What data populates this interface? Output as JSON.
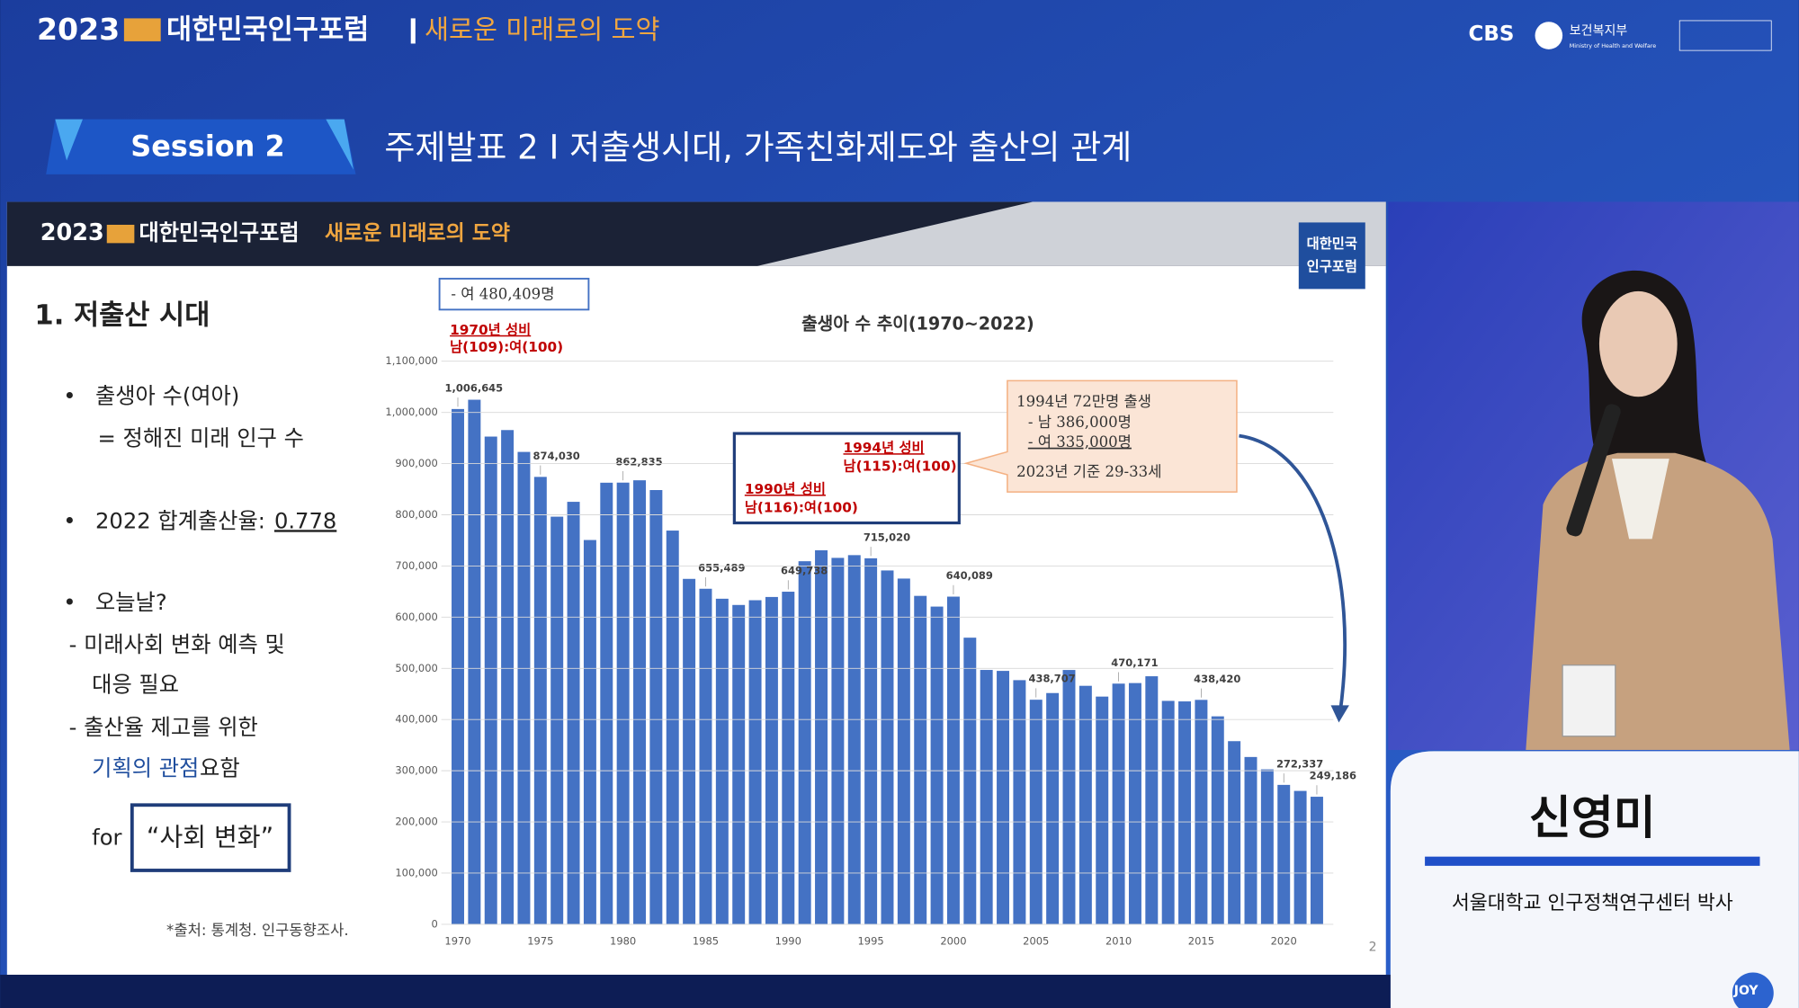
{
  "broadcast": {
    "year": "2023",
    "forum": "대한민국인구포럼",
    "slogan": "새로운 미래로의 도약",
    "logos": [
      "CBS",
      "보건복지부",
      "Ministry of Health and Welfare"
    ],
    "corner": "JOY"
  },
  "session": {
    "label": "Session 2",
    "title": "주제발표 2 I 저출생시대, 가족친화제도와 출산의 관계"
  },
  "slide": {
    "header_year": "2023",
    "header_forum": "대한민국인구포럼",
    "header_slogan": "새로운 미래로의 도약",
    "badge": [
      "대한민국",
      "인구포럼"
    ],
    "heading": "1. 저출산 시대",
    "lines": [
      "•",
      "출생아 수(여아)",
      "= 정해진 미래 인구 수",
      "•",
      "2022 합계출산율: ",
      "0.778",
      "•",
      "오늘날?",
      "- 미래사회 변화 예측 및",
      "대응 필요",
      "- 출산율 제고를 위한",
      "기획의 관점",
      " 요함",
      "for",
      "“사회 변화”"
    ],
    "source": "*출처: 통계청. 인구동향조사.",
    "page": "2"
  },
  "chart_data": {
    "type": "bar",
    "title": "출생아 수 추이(1970~2022)",
    "x": [
      1970,
      1971,
      1972,
      1973,
      1974,
      1975,
      1976,
      1977,
      1978,
      1979,
      1980,
      1981,
      1982,
      1983,
      1984,
      1985,
      1986,
      1987,
      1988,
      1989,
      1990,
      1991,
      1992,
      1993,
      1994,
      1995,
      1996,
      1997,
      1998,
      1999,
      2000,
      2001,
      2002,
      2003,
      2004,
      2005,
      2006,
      2007,
      2008,
      2009,
      2010,
      2011,
      2012,
      2013,
      2014,
      2015,
      2016,
      2017,
      2018,
      2019,
      2020,
      2021,
      2022
    ],
    "values": [
      1006645,
      1024773,
      952780,
      965521,
      922823,
      874030,
      796331,
      825339,
      750728,
      862669,
      862835,
      867409,
      848312,
      769155,
      674793,
      655489,
      636019,
      623831,
      633092,
      639431,
      649738,
      709275,
      730678,
      715826,
      721185,
      715020,
      691226,
      675394,
      641594,
      620668,
      640089,
      559934,
      496911,
      495036,
      476958,
      438707,
      451759,
      496822,
      465892,
      444849,
      470171,
      471265,
      484550,
      436455,
      435435,
      438420,
      406243,
      357771,
      326822,
      302676,
      272337,
      260562,
      249186
    ],
    "value_labels": [
      "1,006,645",
      null,
      null,
      null,
      null,
      "874,030",
      null,
      null,
      null,
      null,
      "862,835",
      null,
      null,
      null,
      null,
      "655,489",
      null,
      null,
      null,
      null,
      "649,738",
      null,
      null,
      null,
      null,
      "715,020",
      null,
      null,
      null,
      null,
      "640,089",
      null,
      null,
      null,
      null,
      "438,707",
      null,
      null,
      null,
      null,
      "470,171",
      null,
      null,
      null,
      null,
      "438,420",
      null,
      null,
      null,
      null,
      "272,337",
      null,
      "249,186"
    ],
    "color": "#4472c4",
    "xlim": [
      1969,
      2023
    ],
    "xticks": [
      1970,
      1975,
      1980,
      1985,
      1990,
      1995,
      2000,
      2005,
      2010,
      2015,
      2020
    ],
    "ylim": [
      0,
      1100000
    ],
    "yticks": [
      0,
      {
        "value": 100000,
        "label": "100,000"
      },
      {
        "value": 200000,
        "label": "200,000"
      },
      {
        "value": 300000,
        "label": "300,000"
      },
      {
        "value": 400000,
        "label": "400,000"
      },
      {
        "value": 500000,
        "label": "500,000"
      },
      {
        "value": 600000,
        "label": "600,000"
      },
      {
        "value": 700000,
        "label": "700,000"
      },
      {
        "value": 800000,
        "label": "800,000"
      },
      {
        "value": 900000,
        "label": "900,000"
      },
      {
        "value": 1000000,
        "label": "1,000,000"
      },
      {
        "value": 1100000,
        "label": "1,100,000"
      }
    ],
    "grid": true,
    "annotations": [
      "- 여 480,409명",
      "1970년 성비",
      "남(109):여(100)",
      "1990년 성비",
      "남(116):여(100)",
      "1994년 성비",
      "남(115):여(100)",
      "1994년 72만명 출생",
      "- 남 386,000명",
      "- 여 335,000명",
      "2023년 기준 29-33세"
    ]
  },
  "speaker": {
    "name": "신영미",
    "affiliation": "서울대학교 인구정책연구센터 박사"
  }
}
